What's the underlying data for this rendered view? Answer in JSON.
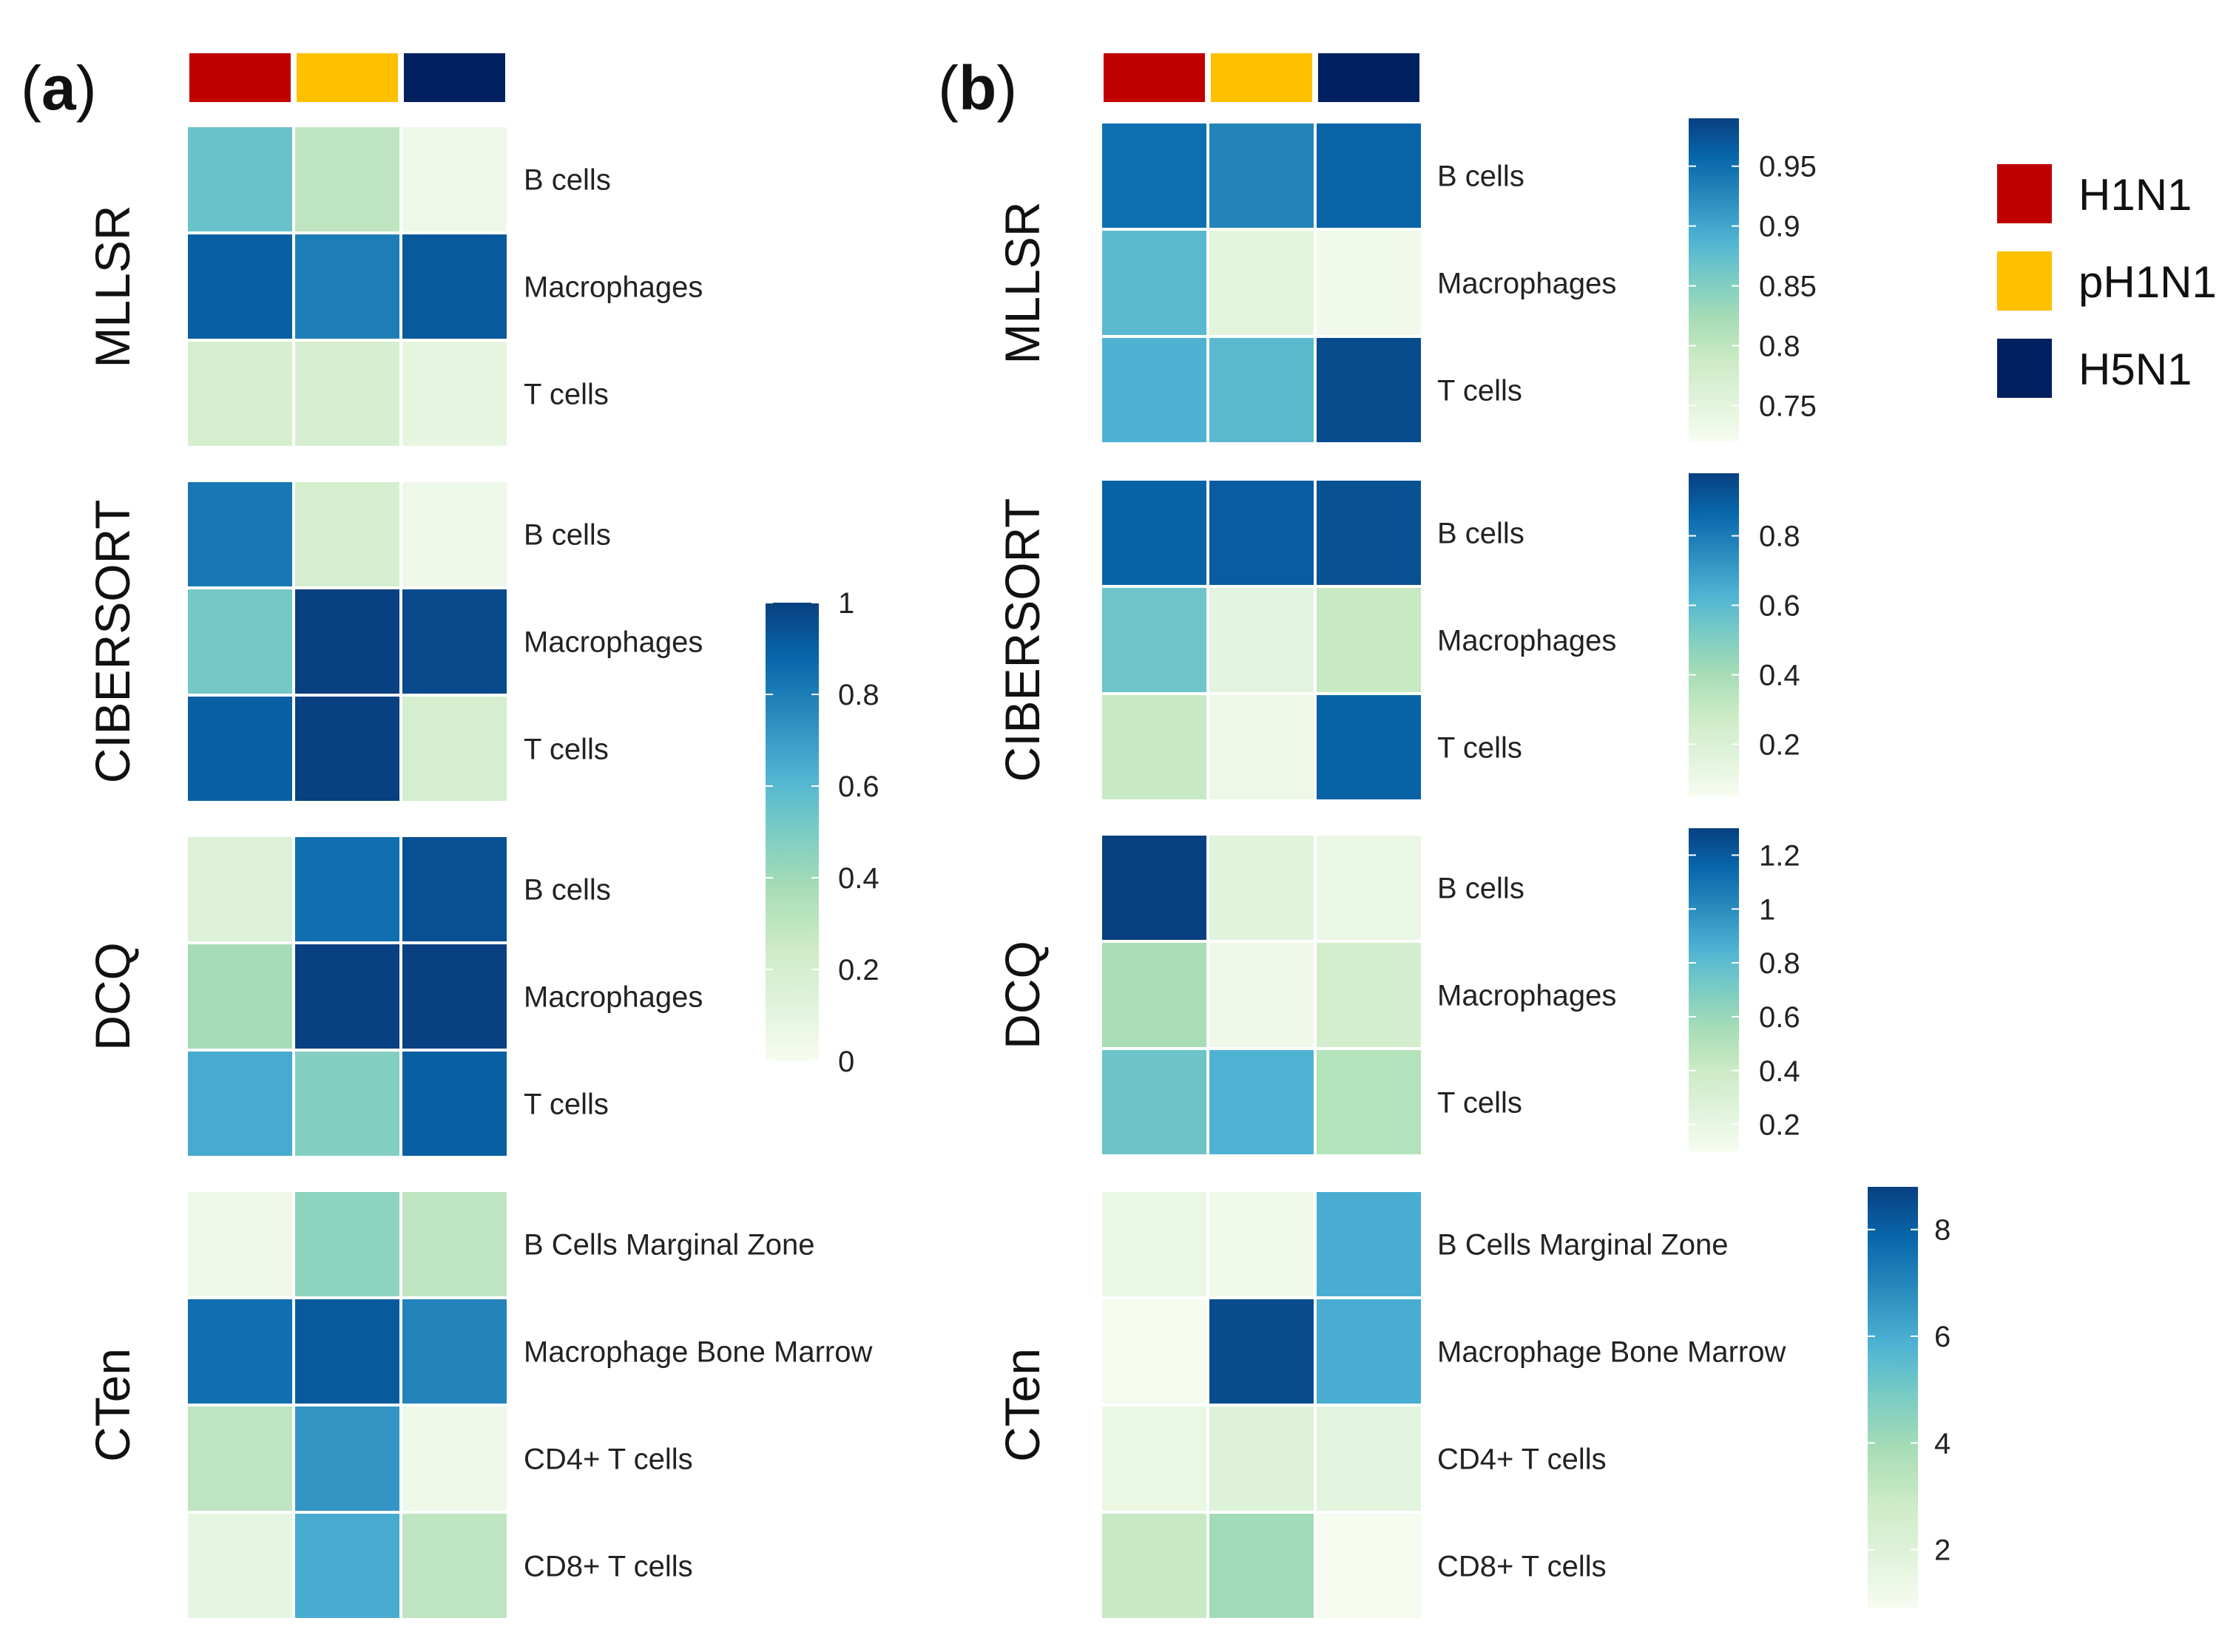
{
  "colors": {
    "H1N1": "#c00000",
    "pH1N1": "#ffc000",
    "H5N1": "#002060",
    "scale": [
      "#f7fcf0",
      "#e0f3db",
      "#ccebc5",
      "#a8ddb5",
      "#7bccc4",
      "#4eb3d3",
      "#2b8cbe",
      "#0868ac",
      "#084081"
    ]
  },
  "legend": {
    "items": [
      {
        "label": "H1N1",
        "color": "#c00000"
      },
      {
        "label": "pH1N1",
        "color": "#ffc000"
      },
      {
        "label": "H5N1",
        "color": "#002060"
      }
    ]
  },
  "chart_data": [
    {
      "type": "heatmap",
      "panel": "(a)",
      "panel_letter": "a",
      "columns": [
        "H1N1",
        "pH1N1",
        "H5N1"
      ],
      "scale": {
        "min": 0,
        "max": 1,
        "ticks": [
          "0",
          "0.2",
          "0.4",
          "0.6",
          "0.8",
          "1"
        ],
        "tick_values": [
          0,
          0.2,
          0.4,
          0.6,
          0.8,
          1
        ]
      },
      "blocks": [
        {
          "method": "MLLSR",
          "rows": [
            "B cells",
            "Macrophages",
            "T cells"
          ],
          "values": [
            [
              0.55,
              0.3,
              0.05
            ],
            [
              0.9,
              0.8,
              0.92
            ],
            [
              0.2,
              0.18,
              0.1
            ]
          ]
        },
        {
          "method": "CIBERSORT",
          "rows": [
            "B cells",
            "Macrophages",
            "T cells"
          ],
          "values": [
            [
              0.82,
              0.2,
              0.05
            ],
            [
              0.52,
              1.0,
              0.97
            ],
            [
              0.9,
              1.0,
              0.2
            ]
          ]
        },
        {
          "method": "DCQ",
          "rows": [
            "B cells",
            "Macrophages",
            "T cells"
          ],
          "values": [
            [
              0.15,
              0.85,
              0.95
            ],
            [
              0.38,
              1.0,
              1.0
            ],
            [
              0.65,
              0.48,
              0.9
            ]
          ]
        },
        {
          "method": "CTen",
          "rows": [
            "B Cells Marginal Zone",
            "Macrophage Bone Marrow",
            "CD4+ T cells",
            "CD8+ T cells"
          ],
          "values": [
            [
              0.05,
              0.45,
              0.3
            ],
            [
              0.85,
              0.92,
              0.78
            ],
            [
              0.3,
              0.72,
              0.05
            ],
            [
              0.1,
              0.65,
              0.3
            ]
          ]
        }
      ]
    },
    {
      "type": "heatmap",
      "panel": "(b)",
      "panel_letter": "b",
      "columns": [
        "H1N1",
        "pH1N1",
        "H5N1"
      ],
      "blocks": [
        {
          "method": "MLLSR",
          "rows": [
            "B cells",
            "Macrophages",
            "T cells"
          ],
          "values": [
            [
              0.95,
              0.93,
              0.96
            ],
            [
              0.88,
              0.75,
              0.73
            ],
            [
              0.89,
              0.88,
              0.98
            ]
          ],
          "scale": {
            "min": 0.72,
            "max": 0.99,
            "ticks": [
              "0.75",
              "0.8",
              "0.85",
              "0.9",
              "0.95"
            ],
            "tick_values": [
              0.75,
              0.8,
              0.85,
              0.9,
              0.95
            ]
          }
        },
        {
          "method": "CIBERSORT",
          "rows": [
            "B cells",
            "Macrophages",
            "T cells"
          ],
          "values": [
            [
              0.88,
              0.9,
              0.93
            ],
            [
              0.55,
              0.15,
              0.3
            ],
            [
              0.3,
              0.1,
              0.88
            ]
          ],
          "scale": {
            "min": 0.05,
            "max": 0.98,
            "ticks": [
              "0.2",
              "0.4",
              "0.6",
              "0.8"
            ],
            "tick_values": [
              0.2,
              0.4,
              0.6,
              0.8
            ]
          }
        },
        {
          "method": "DCQ",
          "rows": [
            "B cells",
            "Macrophages",
            "T cells"
          ],
          "values": [
            [
              1.3,
              0.25,
              0.18
            ],
            [
              0.55,
              0.15,
              0.35
            ],
            [
              0.75,
              0.85,
              0.5
            ]
          ],
          "scale": {
            "min": 0.1,
            "max": 1.3,
            "ticks": [
              "0.2",
              "0.4",
              "0.6",
              "0.8",
              "1",
              "1.2"
            ],
            "tick_values": [
              0.2,
              0.4,
              0.6,
              0.8,
              1,
              1.2
            ]
          }
        },
        {
          "method": "CTen",
          "rows": [
            "B Cells Marginal Zone",
            "Macrophage Bone Marrow",
            "CD4+ T cells",
            "CD8+ T cells"
          ],
          "values": [
            [
              1.5,
              1.2,
              6.0
            ],
            [
              1.0,
              8.5,
              6.0
            ],
            [
              1.5,
              2.0,
              1.8
            ],
            [
              3.0,
              4.0,
              1.0
            ]
          ],
          "scale": {
            "min": 0.9,
            "max": 8.8,
            "ticks": [
              "2",
              "4",
              "6",
              "8"
            ],
            "tick_values": [
              2,
              4,
              6,
              8
            ]
          }
        }
      ]
    }
  ]
}
